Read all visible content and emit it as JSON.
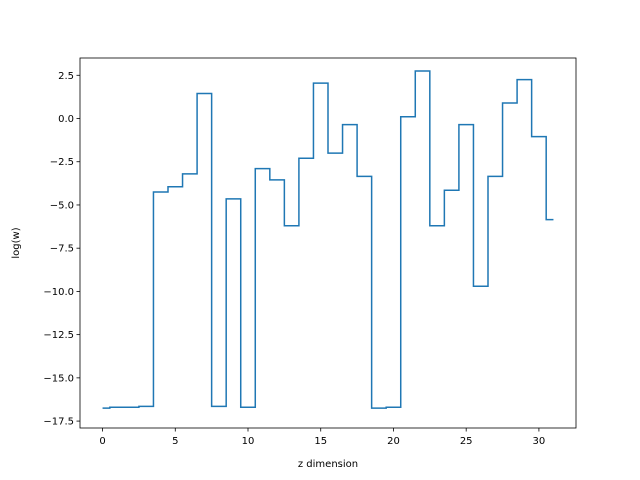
{
  "chart_data": {
    "type": "line",
    "drawstyle": "steps-mid",
    "title": "",
    "xlabel": "z dimension",
    "ylabel": "log(w)",
    "xlim": [
      -1.55,
      32.55
    ],
    "ylim": [
      -17.9,
      3.5
    ],
    "xticks": [
      0,
      5,
      10,
      15,
      20,
      25,
      30
    ],
    "yticks": [
      -17.5,
      -15.0,
      -12.5,
      -10.0,
      -7.5,
      -5.0,
      -2.5,
      0.0,
      2.5
    ],
    "xtick_labels": [
      "0",
      "5",
      "10",
      "15",
      "20",
      "25",
      "30"
    ],
    "ytick_labels": [
      "−17.5",
      "−15.0",
      "−12.5",
      "−10.0",
      "−7.5",
      "−5.0",
      "−2.5",
      "0.0",
      "2.5"
    ],
    "grid": false,
    "line_color": "#1f77b4",
    "x": [
      0,
      1,
      2,
      3,
      4,
      5,
      6,
      7,
      8,
      9,
      10,
      11,
      12,
      13,
      14,
      15,
      16,
      17,
      18,
      19,
      20,
      21,
      22,
      23,
      24,
      25,
      26,
      27,
      28,
      29,
      30,
      31
    ],
    "y": [
      -16.75,
      -16.7,
      -16.7,
      -16.65,
      -4.25,
      -3.95,
      -3.2,
      1.45,
      -16.65,
      -4.65,
      -16.7,
      -2.9,
      -3.55,
      -6.2,
      -2.3,
      2.05,
      -2.0,
      -0.35,
      -3.35,
      -16.75,
      -16.7,
      0.1,
      2.75,
      -6.2,
      -4.15,
      -0.35,
      -9.7,
      -3.35,
      0.9,
      2.25,
      -1.05,
      -5.85
    ]
  }
}
